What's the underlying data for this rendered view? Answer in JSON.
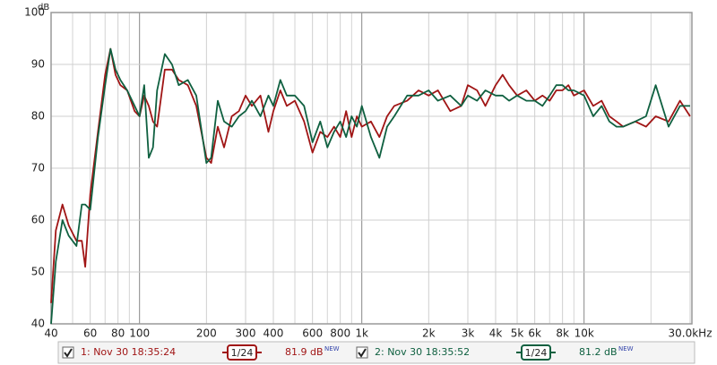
{
  "chart_data": {
    "type": "line",
    "y_label": "dB",
    "xlim": [
      40,
      30000
    ],
    "ylim": [
      40,
      100
    ],
    "log_x": true,
    "grid": true,
    "yticks": [
      40,
      50,
      60,
      70,
      80,
      90,
      100
    ],
    "xticks": [
      40,
      60,
      80,
      100,
      200,
      300,
      400,
      600,
      800,
      {
        "value": 1000,
        "label": "1k"
      },
      {
        "value": 2000,
        "label": "2k"
      },
      {
        "value": 3000,
        "label": "3k"
      },
      {
        "value": 4000,
        "label": "4k"
      },
      {
        "value": 5000,
        "label": "5k"
      },
      {
        "value": 6000,
        "label": "6k"
      },
      {
        "value": 8000,
        "label": "8k"
      },
      {
        "value": 10000,
        "label": "10k"
      },
      {
        "value": 30000,
        "label": "30.0kHz"
      }
    ],
    "minor_xticks": [
      50,
      70,
      90,
      500,
      700,
      900,
      7000,
      9000,
      20000
    ],
    "x": [
      40,
      42,
      45,
      48,
      52,
      55,
      57,
      60,
      65,
      70,
      74,
      78,
      82,
      88,
      95,
      100,
      105,
      110,
      115,
      120,
      130,
      140,
      150,
      165,
      180,
      200,
      210,
      225,
      240,
      260,
      280,
      300,
      320,
      350,
      380,
      400,
      430,
      460,
      500,
      550,
      600,
      650,
      700,
      750,
      800,
      850,
      900,
      950,
      1000,
      1100,
      1200,
      1300,
      1400,
      1600,
      1800,
      2000,
      2200,
      2500,
      2800,
      3000,
      3300,
      3600,
      4000,
      4300,
      4600,
      5000,
      5500,
      6000,
      6500,
      7000,
      7500,
      8000,
      8500,
      9000,
      10000,
      11000,
      12000,
      13000,
      14000,
      15000,
      17000,
      19000,
      21000,
      24000,
      27000,
      30000
    ],
    "series": [
      {
        "name": "1: Nov 30 18:35:24",
        "color": "#a01515",
        "smoothing": "1/24",
        "level": "81.9 dB",
        "level_tag": "NEW",
        "values": [
          44,
          58,
          63,
          59,
          56,
          56,
          51,
          65,
          77,
          88,
          93,
          88,
          86,
          85,
          81,
          80,
          84,
          82,
          79,
          78,
          89,
          89,
          87,
          86,
          82,
          72,
          71,
          78,
          74,
          80,
          81,
          84,
          82,
          84,
          77,
          81,
          85,
          82,
          83,
          79,
          73,
          77,
          76,
          78,
          76,
          81,
          76,
          80,
          78,
          79,
          76,
          80,
          82,
          83,
          85,
          84,
          85,
          81,
          82,
          86,
          85,
          82,
          86,
          88,
          86,
          84,
          85,
          83,
          84,
          83,
          85,
          85,
          86,
          84,
          85,
          82,
          83,
          80,
          79,
          78,
          79,
          78,
          80,
          79,
          83,
          80
        ]
      },
      {
        "name": "2: Nov 30 18:35:52",
        "color": "#0f6040",
        "smoothing": "1/24",
        "level": "81.2 dB",
        "level_tag": "NEW",
        "values": [
          40,
          52,
          60,
          57,
          55,
          63,
          63,
          62,
          76,
          86,
          93,
          89,
          87,
          85,
          82,
          80,
          86,
          72,
          74,
          85,
          92,
          90,
          86,
          87,
          84,
          71,
          72,
          83,
          79,
          78,
          80,
          81,
          83,
          80,
          84,
          82,
          87,
          84,
          84,
          82,
          75,
          79,
          74,
          77,
          79,
          76,
          80,
          78,
          82,
          76,
          72,
          78,
          80,
          84,
          84,
          85,
          83,
          84,
          82,
          84,
          83,
          85,
          84,
          84,
          83,
          84,
          83,
          83,
          82,
          84,
          86,
          86,
          85,
          85,
          84,
          80,
          82,
          79,
          78,
          78,
          79,
          80,
          86,
          78,
          82,
          82
        ]
      }
    ]
  }
}
